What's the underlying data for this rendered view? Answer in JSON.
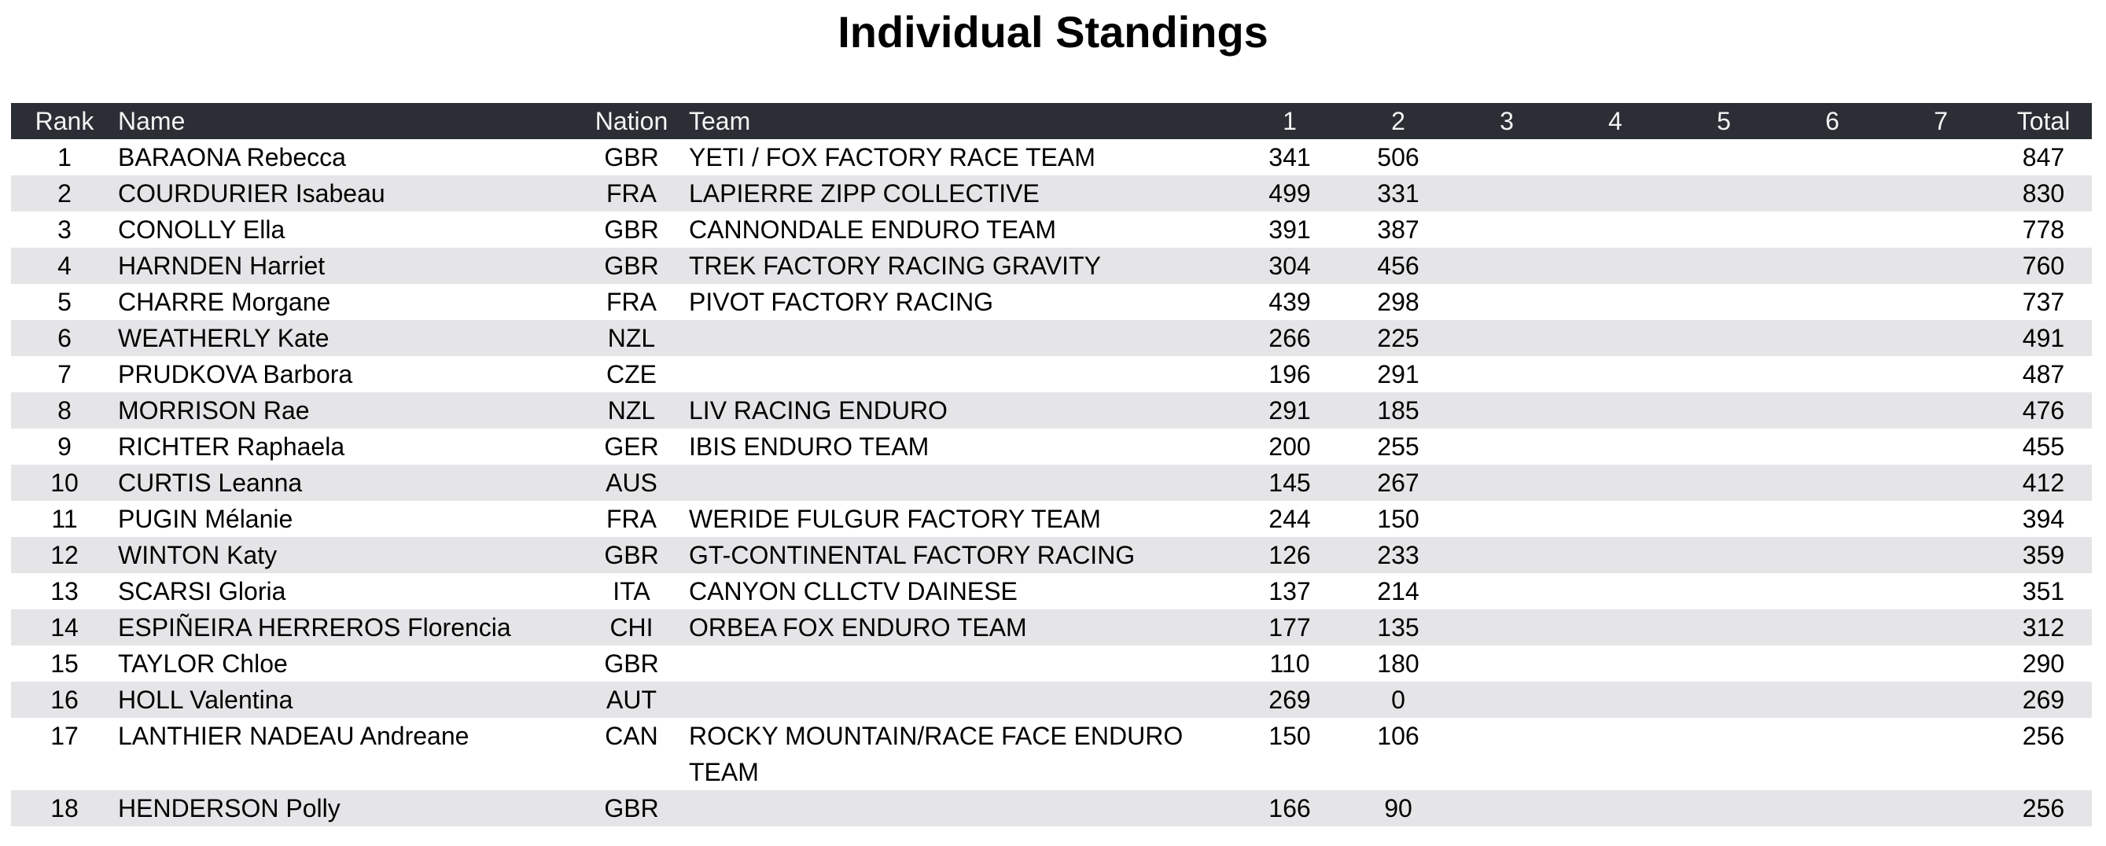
{
  "title": "Individual Standings",
  "colors": {
    "header_bg": "#2b2e35",
    "header_text": "#f4f4f4",
    "row_alt_bg": "#e5e5e7",
    "row_bg": "#ffffff",
    "text": "#000000"
  },
  "table": {
    "headers": [
      "Rank",
      "Name",
      "Nation",
      "Team",
      "1",
      "2",
      "3",
      "4",
      "5",
      "6",
      "7",
      "Total"
    ],
    "rows": [
      [
        "1",
        "BARAONA Rebecca",
        "GBR",
        "YETI / FOX FACTORY RACE TEAM",
        "341",
        "506",
        "",
        "",
        "",
        "",
        "",
        "847"
      ],
      [
        "2",
        "COURDURIER Isabeau",
        "FRA",
        "LAPIERRE ZIPP COLLECTIVE",
        "499",
        "331",
        "",
        "",
        "",
        "",
        "",
        "830"
      ],
      [
        "3",
        "CONOLLY Ella",
        "GBR",
        "CANNONDALE ENDURO TEAM",
        "391",
        "387",
        "",
        "",
        "",
        "",
        "",
        "778"
      ],
      [
        "4",
        "HARNDEN Harriet",
        "GBR",
        "TREK FACTORY RACING GRAVITY",
        "304",
        "456",
        "",
        "",
        "",
        "",
        "",
        "760"
      ],
      [
        "5",
        "CHARRE Morgane",
        "FRA",
        "PIVOT FACTORY RACING",
        "439",
        "298",
        "",
        "",
        "",
        "",
        "",
        "737"
      ],
      [
        "6",
        "WEATHERLY Kate",
        "NZL",
        "",
        "266",
        "225",
        "",
        "",
        "",
        "",
        "",
        "491"
      ],
      [
        "7",
        "PRUDKOVA Barbora",
        "CZE",
        "",
        "196",
        "291",
        "",
        "",
        "",
        "",
        "",
        "487"
      ],
      [
        "8",
        "MORRISON Rae",
        "NZL",
        "LIV RACING ENDURO",
        "291",
        "185",
        "",
        "",
        "",
        "",
        "",
        "476"
      ],
      [
        "9",
        "RICHTER Raphaela",
        "GER",
        "IBIS ENDURO TEAM",
        "200",
        "255",
        "",
        "",
        "",
        "",
        "",
        "455"
      ],
      [
        "10",
        "CURTIS Leanna",
        "AUS",
        "",
        "145",
        "267",
        "",
        "",
        "",
        "",
        "",
        "412"
      ],
      [
        "11",
        "PUGIN Mélanie",
        "FRA",
        "WERIDE FULGUR FACTORY TEAM",
        "244",
        "150",
        "",
        "",
        "",
        "",
        "",
        "394"
      ],
      [
        "12",
        "WINTON Katy",
        "GBR",
        "GT-CONTINENTAL FACTORY RACING",
        "126",
        "233",
        "",
        "",
        "",
        "",
        "",
        "359"
      ],
      [
        "13",
        "SCARSI Gloria",
        "ITA",
        "CANYON CLLCTV DAINESE",
        "137",
        "214",
        "",
        "",
        "",
        "",
        "",
        "351"
      ],
      [
        "14",
        "ESPIÑEIRA HERREROS Florencia",
        "CHI",
        "ORBEA FOX ENDURO TEAM",
        "177",
        "135",
        "",
        "",
        "",
        "",
        "",
        "312"
      ],
      [
        "15",
        "TAYLOR Chloe",
        "GBR",
        "",
        "110",
        "180",
        "",
        "",
        "",
        "",
        "",
        "290"
      ],
      [
        "16",
        "HOLL Valentina",
        "AUT",
        "",
        "269",
        "0",
        "",
        "",
        "",
        "",
        "",
        "269"
      ],
      [
        "17",
        "LANTHIER NADEAU Andreane",
        "CAN",
        "ROCKY MOUNTAIN/RACE FACE ENDURO TEAM",
        "150",
        "106",
        "",
        "",
        "",
        "",
        "",
        "256"
      ],
      [
        "18",
        "HENDERSON Polly",
        "GBR",
        "",
        "166",
        "90",
        "",
        "",
        "",
        "",
        "",
        "256"
      ]
    ]
  }
}
